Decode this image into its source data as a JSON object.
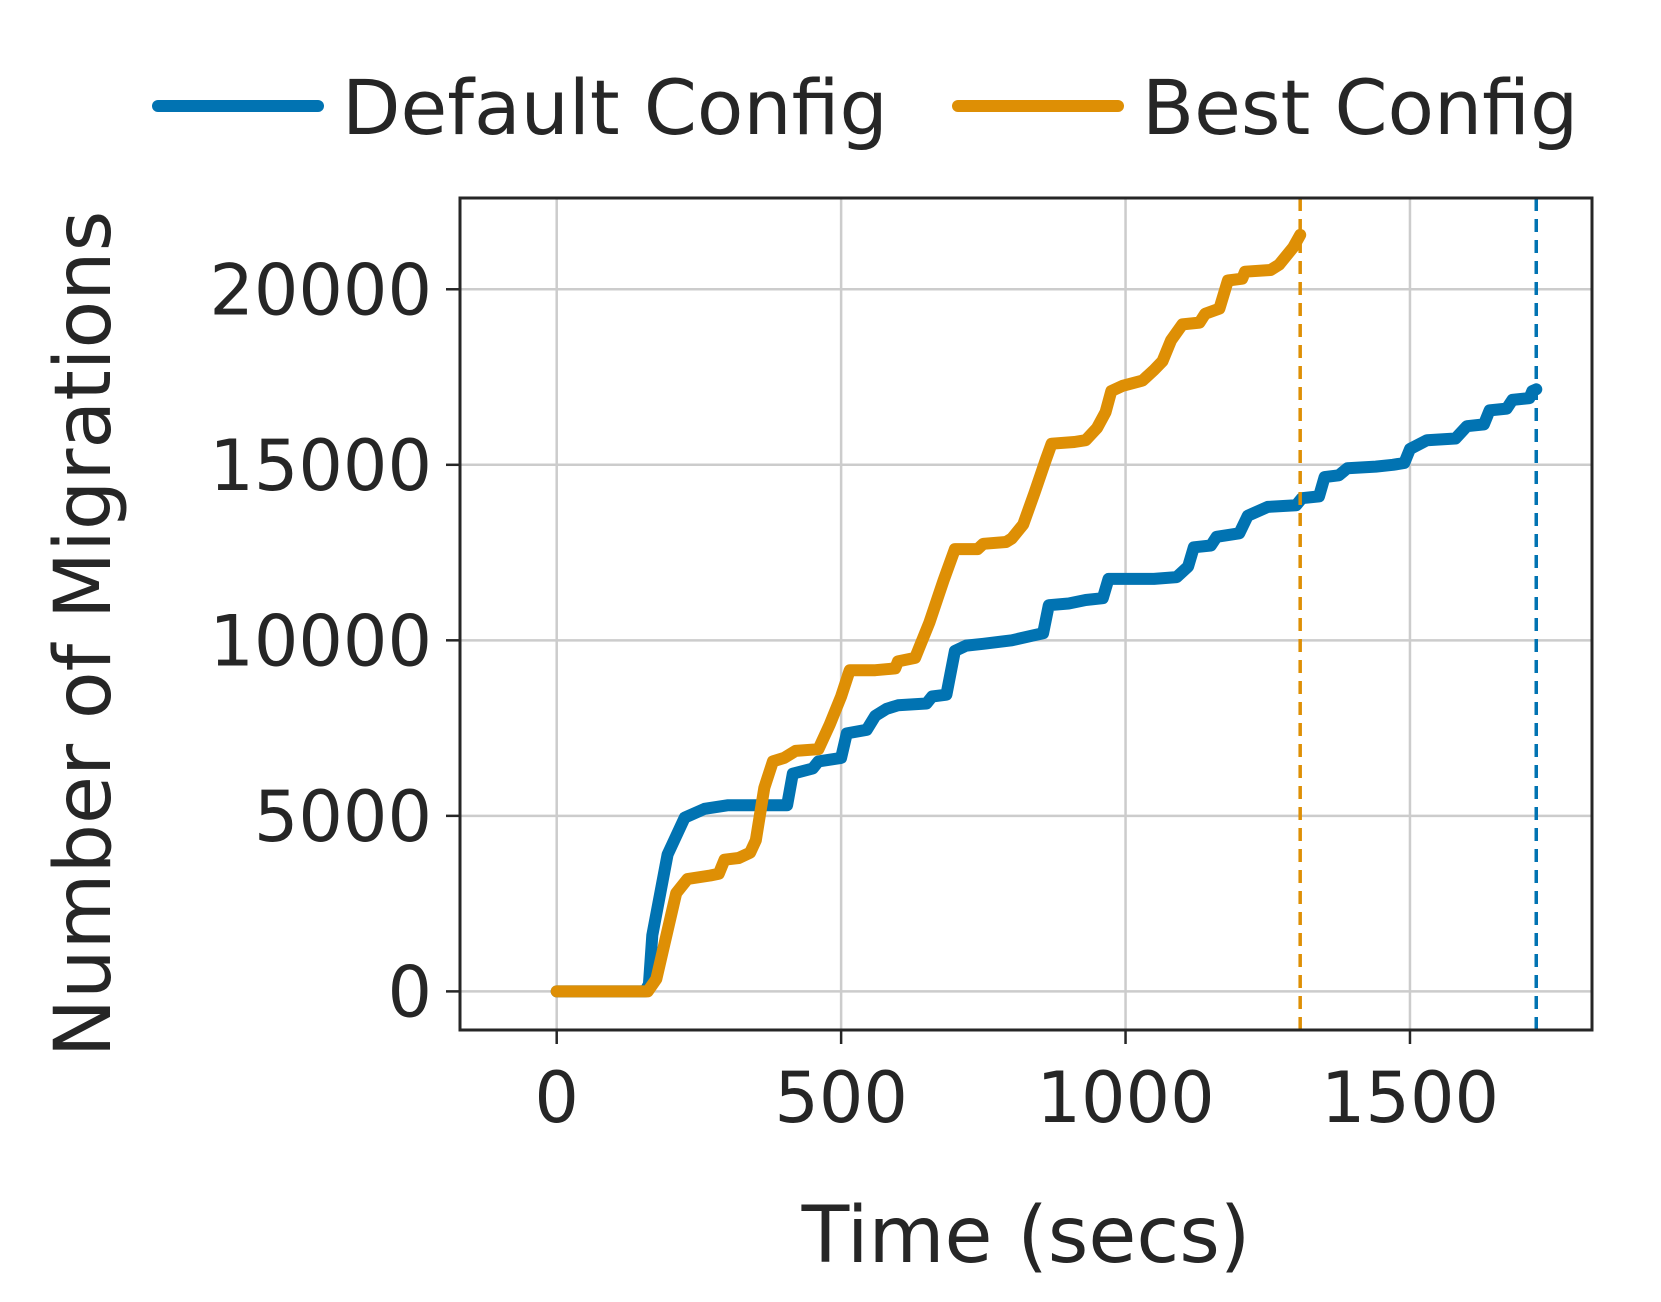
{
  "chart_data": {
    "type": "line",
    "xlabel": "Time (secs)",
    "ylabel": "Number of Migrations",
    "xlim": [
      -170,
      1820
    ],
    "ylim": [
      -1100,
      22600
    ],
    "xticks": [
      0,
      500,
      1000,
      1500
    ],
    "xtick_labels": [
      "0",
      "500",
      "1000",
      "1500"
    ],
    "yticks": [
      0,
      5000,
      10000,
      15000,
      20000
    ],
    "ytick_labels": [
      "0",
      "5000",
      "10000",
      "15000",
      "20000"
    ],
    "grid": true,
    "legend_position": "top, above plot",
    "series": [
      {
        "name": "Default Config",
        "color": "#0173b2",
        "end_time": 1722,
        "points": [
          [
            0,
            0
          ],
          [
            155,
            0
          ],
          [
            162,
            200
          ],
          [
            168,
            1600
          ],
          [
            195,
            3900
          ],
          [
            225,
            4950
          ],
          [
            260,
            5200
          ],
          [
            300,
            5300
          ],
          [
            350,
            5300
          ],
          [
            405,
            5300
          ],
          [
            415,
            6200
          ],
          [
            450,
            6350
          ],
          [
            460,
            6550
          ],
          [
            500,
            6650
          ],
          [
            510,
            7350
          ],
          [
            545,
            7450
          ],
          [
            560,
            7850
          ],
          [
            580,
            8050
          ],
          [
            600,
            8150
          ],
          [
            650,
            8200
          ],
          [
            660,
            8400
          ],
          [
            685,
            8450
          ],
          [
            700,
            9700
          ],
          [
            720,
            9850
          ],
          [
            750,
            9900
          ],
          [
            800,
            10000
          ],
          [
            840,
            10150
          ],
          [
            855,
            10200
          ],
          [
            865,
            11000
          ],
          [
            900,
            11050
          ],
          [
            930,
            11150
          ],
          [
            960,
            11200
          ],
          [
            970,
            11750
          ],
          [
            1000,
            11750
          ],
          [
            1050,
            11750
          ],
          [
            1090,
            11800
          ],
          [
            1110,
            12100
          ],
          [
            1120,
            12650
          ],
          [
            1150,
            12700
          ],
          [
            1160,
            12950
          ],
          [
            1200,
            13050
          ],
          [
            1215,
            13550
          ],
          [
            1250,
            13800
          ],
          [
            1300,
            13850
          ],
          [
            1310,
            14050
          ],
          [
            1340,
            14100
          ],
          [
            1350,
            14650
          ],
          [
            1375,
            14700
          ],
          [
            1390,
            14900
          ],
          [
            1440,
            14950
          ],
          [
            1470,
            15000
          ],
          [
            1490,
            15050
          ],
          [
            1500,
            15450
          ],
          [
            1530,
            15700
          ],
          [
            1580,
            15750
          ],
          [
            1600,
            16100
          ],
          [
            1630,
            16150
          ],
          [
            1640,
            16550
          ],
          [
            1670,
            16600
          ],
          [
            1680,
            16850
          ],
          [
            1710,
            16900
          ],
          [
            1715,
            17100
          ],
          [
            1722,
            17150
          ]
        ]
      },
      {
        "name": "Best Config",
        "color": "#de8f05",
        "end_time": 1307,
        "points": [
          [
            0,
            0
          ],
          [
            160,
            0
          ],
          [
            175,
            350
          ],
          [
            210,
            2800
          ],
          [
            230,
            3200
          ],
          [
            270,
            3300
          ],
          [
            285,
            3350
          ],
          [
            295,
            3750
          ],
          [
            320,
            3800
          ],
          [
            340,
            3950
          ],
          [
            350,
            4300
          ],
          [
            365,
            5800
          ],
          [
            380,
            6550
          ],
          [
            400,
            6650
          ],
          [
            420,
            6850
          ],
          [
            460,
            6900
          ],
          [
            480,
            7600
          ],
          [
            500,
            8400
          ],
          [
            515,
            9150
          ],
          [
            560,
            9150
          ],
          [
            595,
            9200
          ],
          [
            600,
            9400
          ],
          [
            630,
            9500
          ],
          [
            640,
            9900
          ],
          [
            655,
            10500
          ],
          [
            680,
            11700
          ],
          [
            700,
            12600
          ],
          [
            740,
            12600
          ],
          [
            750,
            12750
          ],
          [
            790,
            12800
          ],
          [
            800,
            12900
          ],
          [
            820,
            13300
          ],
          [
            840,
            14200
          ],
          [
            860,
            15150
          ],
          [
            870,
            15600
          ],
          [
            910,
            15650
          ],
          [
            930,
            15700
          ],
          [
            950,
            16050
          ],
          [
            965,
            16500
          ],
          [
            975,
            17100
          ],
          [
            995,
            17250
          ],
          [
            1030,
            17400
          ],
          [
            1050,
            17700
          ],
          [
            1065,
            17950
          ],
          [
            1080,
            18550
          ],
          [
            1100,
            19000
          ],
          [
            1130,
            19050
          ],
          [
            1140,
            19300
          ],
          [
            1165,
            19450
          ],
          [
            1180,
            20250
          ],
          [
            1205,
            20300
          ],
          [
            1210,
            20500
          ],
          [
            1255,
            20550
          ],
          [
            1270,
            20700
          ],
          [
            1295,
            21200
          ],
          [
            1307,
            21550
          ]
        ]
      }
    ]
  }
}
